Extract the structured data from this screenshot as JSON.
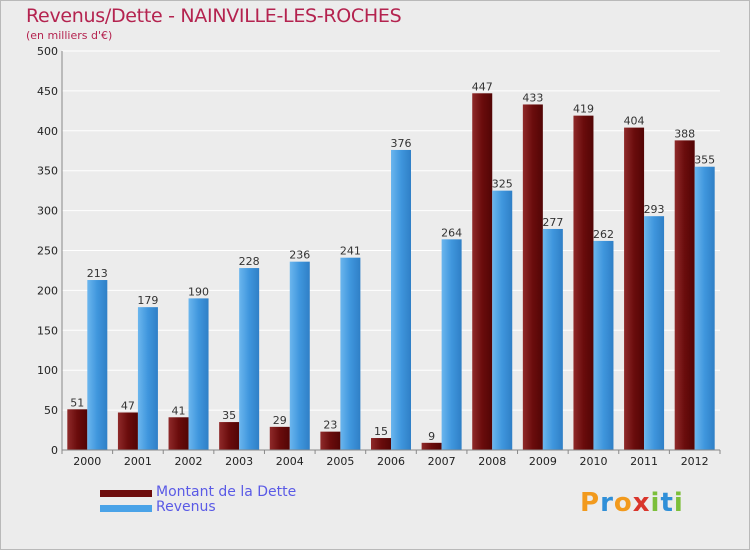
{
  "title": "Revenus/Dette - NAINVILLE-LES-ROCHES",
  "subtitle": "(en milliers d'€)",
  "colors": {
    "dette": "#7a1a1a",
    "revenus": "#3d8fd9",
    "grid": "#ffffff",
    "axis_text": "#222222",
    "title": "#b4234f",
    "legend_text": "#5a5ae6"
  },
  "legend": {
    "items": [
      {
        "label": "Montant de la Dette",
        "color": "#6e0d0d"
      },
      {
        "label": "Revenus",
        "color": "#4aa3e8"
      }
    ]
  },
  "logo": {
    "letters": [
      "P",
      "r",
      "o",
      "x",
      "i",
      "t",
      "i"
    ],
    "colors": [
      "#f29a1d",
      "#2f8fd8",
      "#f29a1d",
      "#d9352b",
      "#7cbf3a",
      "#2f8fd8",
      "#7cbf3a"
    ]
  },
  "chart_data": {
    "type": "bar",
    "title": "Revenus/Dette - NAINVILLE-LES-ROCHES",
    "subtitle": "(en milliers d'€)",
    "categories": [
      "2000",
      "2001",
      "2002",
      "2003",
      "2004",
      "2005",
      "2006",
      "2007",
      "2008",
      "2009",
      "2010",
      "2011",
      "2012"
    ],
    "series": [
      {
        "name": "Montant de la Dette",
        "values": [
          51,
          47,
          41,
          35,
          29,
          23,
          15,
          9,
          447,
          433,
          419,
          404,
          388
        ]
      },
      {
        "name": "Revenus",
        "values": [
          213,
          179,
          190,
          228,
          236,
          241,
          376,
          264,
          325,
          277,
          262,
          293,
          355
        ]
      }
    ],
    "ylim": [
      0,
      500
    ],
    "yticks": [
      0,
      50,
      100,
      150,
      200,
      250,
      300,
      350,
      400,
      450,
      500
    ],
    "grid": true,
    "legend_position": "bottom-left"
  }
}
